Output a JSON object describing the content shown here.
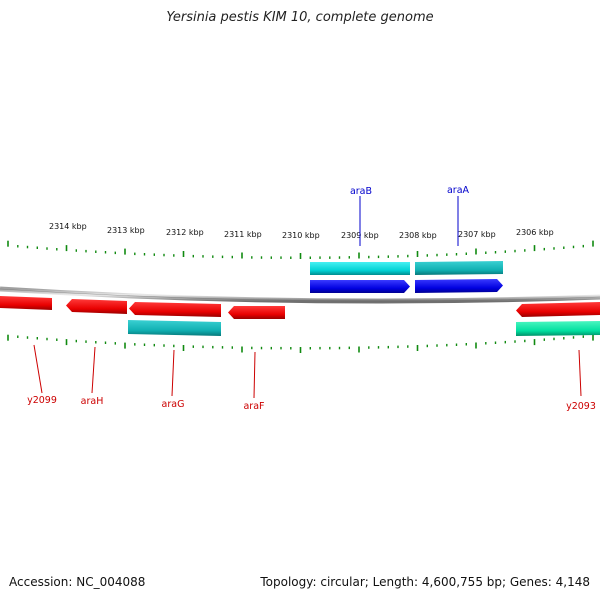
{
  "title": "Yersinia pestis KIM 10, complete genome",
  "scale_labels": [
    "2314 kbp",
    "2313 kbp",
    "2312 kbp",
    "2311 kbp",
    "2310 kbp",
    "2309 kbp",
    "2308 kbp",
    "2307 kbp",
    "2306 kbp"
  ],
  "genes": [
    {
      "name": "araB",
      "strand": "+",
      "color": "#0000dd"
    },
    {
      "name": "araA",
      "strand": "+",
      "color": "#0000dd"
    },
    {
      "name": "y2099",
      "strand": "-",
      "color": "#e60000"
    },
    {
      "name": "araH",
      "strand": "-",
      "color": "#e60000"
    },
    {
      "name": "araG",
      "strand": "-",
      "color": "#e60000"
    },
    {
      "name": "araF",
      "strand": "-",
      "color": "#e60000"
    },
    {
      "name": "y2093",
      "strand": "-",
      "color": "#e60000"
    }
  ],
  "cds_colors": {
    "cyan": "#00c8cc",
    "teal": "#14b0b4",
    "green": "#00e0a0"
  },
  "footer": {
    "accession": "Accession: NC_004088",
    "summary": "Topology: circular; Length: 4,600,755 bp; Genes: 4,148"
  }
}
